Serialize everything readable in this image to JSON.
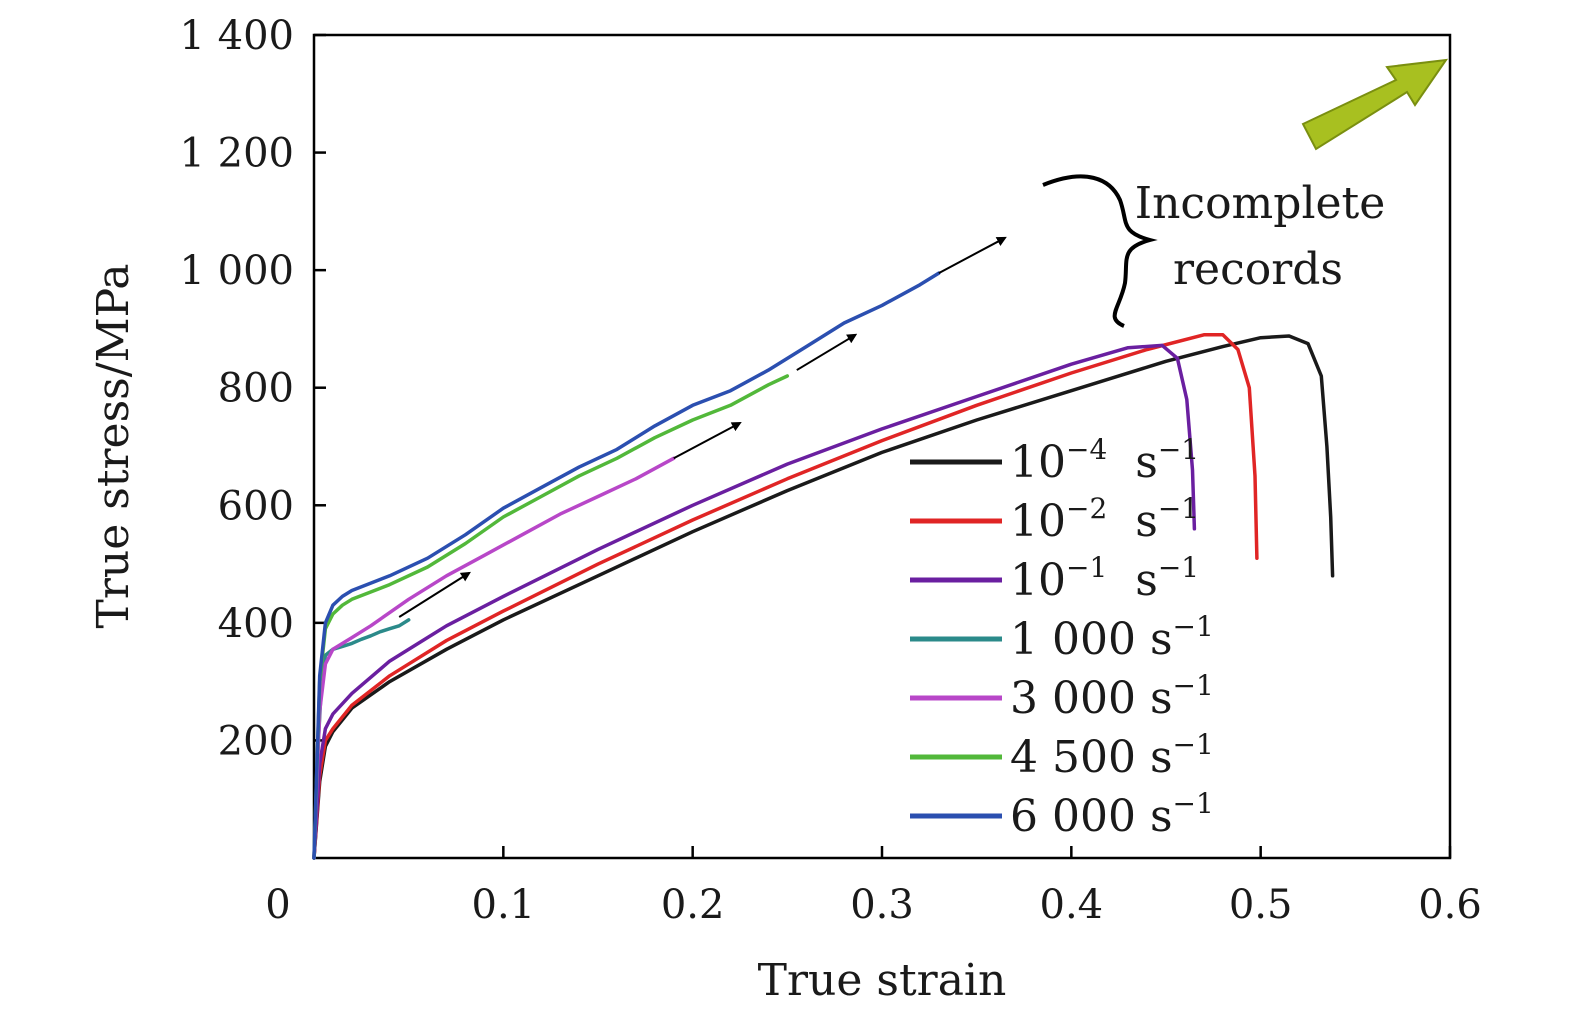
{
  "chart_data": {
    "type": "line",
    "title": "",
    "xlabel": "True strain",
    "ylabel": "True stress/MPa",
    "xlim": [
      0,
      0.6
    ],
    "ylim": [
      0,
      1400
    ],
    "xticks": [
      0,
      0.1,
      0.2,
      0.3,
      0.4,
      0.5,
      0.6
    ],
    "xtick_labels": [
      "0",
      "0.1",
      "0.2",
      "0.3",
      "0.4",
      "0.5",
      "0.6"
    ],
    "yticks": [
      200,
      400,
      600,
      800,
      1000,
      1200,
      1400
    ],
    "ytick_labels": [
      "200",
      "400",
      "600",
      "800",
      "1 000",
      "1 200",
      "1 400"
    ],
    "grid": false,
    "legend_position": "bottom-right",
    "series": [
      {
        "name": "10⁻⁴ s⁻¹",
        "base": "10",
        "exp": "−4",
        "unit": " s",
        "unit_exp": "−1",
        "color": "#1a1a1a",
        "x": [
          0,
          0.003,
          0.006,
          0.01,
          0.02,
          0.04,
          0.07,
          0.1,
          0.15,
          0.2,
          0.25,
          0.3,
          0.35,
          0.4,
          0.45,
          0.48,
          0.5,
          0.515,
          0.525,
          0.532,
          0.535,
          0.537,
          0.538
        ],
        "y": [
          0,
          130,
          190,
          215,
          255,
          300,
          355,
          405,
          480,
          555,
          625,
          690,
          745,
          795,
          845,
          870,
          885,
          888,
          875,
          820,
          700,
          580,
          480
        ]
      },
      {
        "name": "10⁻² s⁻¹",
        "base": "10",
        "exp": "−2",
        "unit": " s",
        "unit_exp": "−1",
        "color": "#e02525",
        "x": [
          0,
          0.003,
          0.006,
          0.01,
          0.02,
          0.04,
          0.07,
          0.1,
          0.15,
          0.2,
          0.25,
          0.3,
          0.35,
          0.4,
          0.44,
          0.47,
          0.48,
          0.488,
          0.494,
          0.497,
          0.498
        ],
        "y": [
          0,
          140,
          200,
          220,
          260,
          310,
          370,
          420,
          500,
          575,
          645,
          710,
          770,
          825,
          865,
          890,
          890,
          865,
          800,
          650,
          510
        ]
      },
      {
        "name": "10⁻¹ s⁻¹",
        "base": "10",
        "exp": "−1",
        "unit": " s",
        "unit_exp": "−1",
        "color": "#6a1fa0",
        "x": [
          0,
          0.003,
          0.006,
          0.01,
          0.02,
          0.04,
          0.07,
          0.1,
          0.15,
          0.2,
          0.25,
          0.3,
          0.35,
          0.4,
          0.43,
          0.448,
          0.456,
          0.461,
          0.464,
          0.465
        ],
        "y": [
          0,
          160,
          220,
          245,
          280,
          335,
          395,
          445,
          525,
          600,
          670,
          730,
          785,
          840,
          868,
          872,
          850,
          780,
          660,
          560
        ]
      },
      {
        "name": "1 000 s⁻¹",
        "base": "1 000",
        "exp": "",
        "unit": " s",
        "unit_exp": "−1",
        "color": "#2b8a8a",
        "x": [
          0,
          0.002,
          0.004,
          0.006,
          0.01,
          0.015,
          0.02,
          0.025,
          0.03,
          0.035,
          0.04,
          0.045,
          0.05
        ],
        "y": [
          0,
          180,
          300,
          345,
          355,
          360,
          365,
          372,
          378,
          385,
          390,
          395,
          405
        ]
      },
      {
        "name": "3 000 s⁻¹",
        "base": "3 000",
        "exp": "",
        "unit": " s",
        "unit_exp": "−1",
        "color": "#b847c8",
        "x": [
          0,
          0.003,
          0.006,
          0.01,
          0.02,
          0.03,
          0.05,
          0.07,
          0.09,
          0.11,
          0.13,
          0.15,
          0.17,
          0.19
        ],
        "y": [
          0,
          250,
          330,
          355,
          375,
          395,
          440,
          480,
          515,
          550,
          585,
          615,
          645,
          680
        ]
      },
      {
        "name": "4 500 s⁻¹",
        "base": "4 500",
        "exp": "",
        "unit": " s",
        "unit_exp": "−1",
        "color": "#52b83a",
        "x": [
          0,
          0.003,
          0.006,
          0.01,
          0.015,
          0.02,
          0.04,
          0.06,
          0.08,
          0.1,
          0.12,
          0.14,
          0.16,
          0.18,
          0.2,
          0.22,
          0.24,
          0.25
        ],
        "y": [
          0,
          300,
          390,
          415,
          430,
          440,
          465,
          495,
          535,
          580,
          615,
          650,
          680,
          715,
          745,
          770,
          805,
          820
        ]
      },
      {
        "name": "6 000 s⁻¹",
        "base": "6 000",
        "exp": "",
        "unit": " s",
        "unit_exp": "−1",
        "color": "#2b4fb0",
        "x": [
          0,
          0.003,
          0.006,
          0.01,
          0.015,
          0.02,
          0.04,
          0.06,
          0.08,
          0.1,
          0.12,
          0.14,
          0.16,
          0.18,
          0.2,
          0.22,
          0.24,
          0.26,
          0.28,
          0.3,
          0.32,
          0.33
        ],
        "y": [
          0,
          310,
          400,
          430,
          445,
          455,
          480,
          510,
          550,
          595,
          630,
          665,
          695,
          735,
          770,
          795,
          830,
          870,
          910,
          940,
          975,
          995
        ]
      }
    ],
    "arrows": [
      {
        "from": [
          0.045,
          410
        ],
        "to": [
          0.082,
          485
        ]
      },
      {
        "from": [
          0.19,
          680
        ],
        "to": [
          0.225,
          740
        ]
      },
      {
        "from": [
          0.255,
          830
        ],
        "to": [
          0.286,
          890
        ]
      },
      {
        "from": [
          0.33,
          995
        ],
        "to": [
          0.365,
          1055
        ]
      }
    ],
    "annotation": {
      "line1": "Incomplete",
      "line2": "records"
    },
    "highlight_arrow_color": "#a8c020"
  }
}
